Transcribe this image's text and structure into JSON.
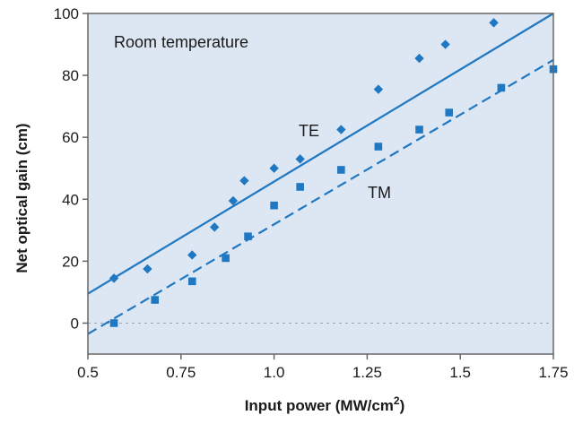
{
  "chart_data": {
    "type": "scatter",
    "title": "",
    "annotation": "Room temperature",
    "xlabel": "Input power (MW/cm",
    "xlabel_sup": "2",
    "xlabel_end": ")",
    "ylabel": "Net optical gain (cm)",
    "xlim": [
      0.5,
      1.75
    ],
    "ylim": [
      -10,
      100
    ],
    "xticks": [
      0.5,
      0.75,
      1.0,
      1.25,
      1.5,
      1.75
    ],
    "xtick_labels": [
      "0.5",
      "0.75",
      "1.0",
      "1.25",
      "1.5",
      "1.75"
    ],
    "yticks": [
      0,
      20,
      40,
      60,
      80,
      100
    ],
    "ytick_labels": [
      "0",
      "20",
      "40",
      "60",
      "80",
      "100"
    ],
    "grid": false,
    "zero_reference_line": true,
    "colors": {
      "accent": "#1f78c1",
      "plot_bg": "#dde6f3",
      "frame": "#666666",
      "zero_line": "#9aa6b5"
    },
    "series": [
      {
        "name": "TE",
        "marker": "diamond",
        "x": [
          0.57,
          0.66,
          0.78,
          0.84,
          0.89,
          0.92,
          1.0,
          1.07,
          1.18,
          1.28,
          1.39,
          1.46,
          1.59
        ],
        "y": [
          14.5,
          17.5,
          22,
          31,
          39.5,
          46,
          50,
          53,
          62.5,
          75.5,
          85.5,
          90,
          97
        ],
        "fit": {
          "style": "solid",
          "x": [
            0.5,
            1.75
          ],
          "y": [
            9.5,
            100
          ]
        }
      },
      {
        "name": "TM",
        "marker": "square",
        "x": [
          0.57,
          0.68,
          0.78,
          0.87,
          0.93,
          1.0,
          1.07,
          1.18,
          1.28,
          1.39,
          1.47,
          1.61,
          1.75
        ],
        "y": [
          0,
          7.5,
          13.5,
          21,
          28,
          38,
          44,
          49.5,
          57,
          62.5,
          68,
          76,
          82
        ],
        "fit": {
          "style": "dashed",
          "x": [
            0.5,
            1.75
          ],
          "y": [
            -3.5,
            85
          ]
        }
      }
    ]
  }
}
